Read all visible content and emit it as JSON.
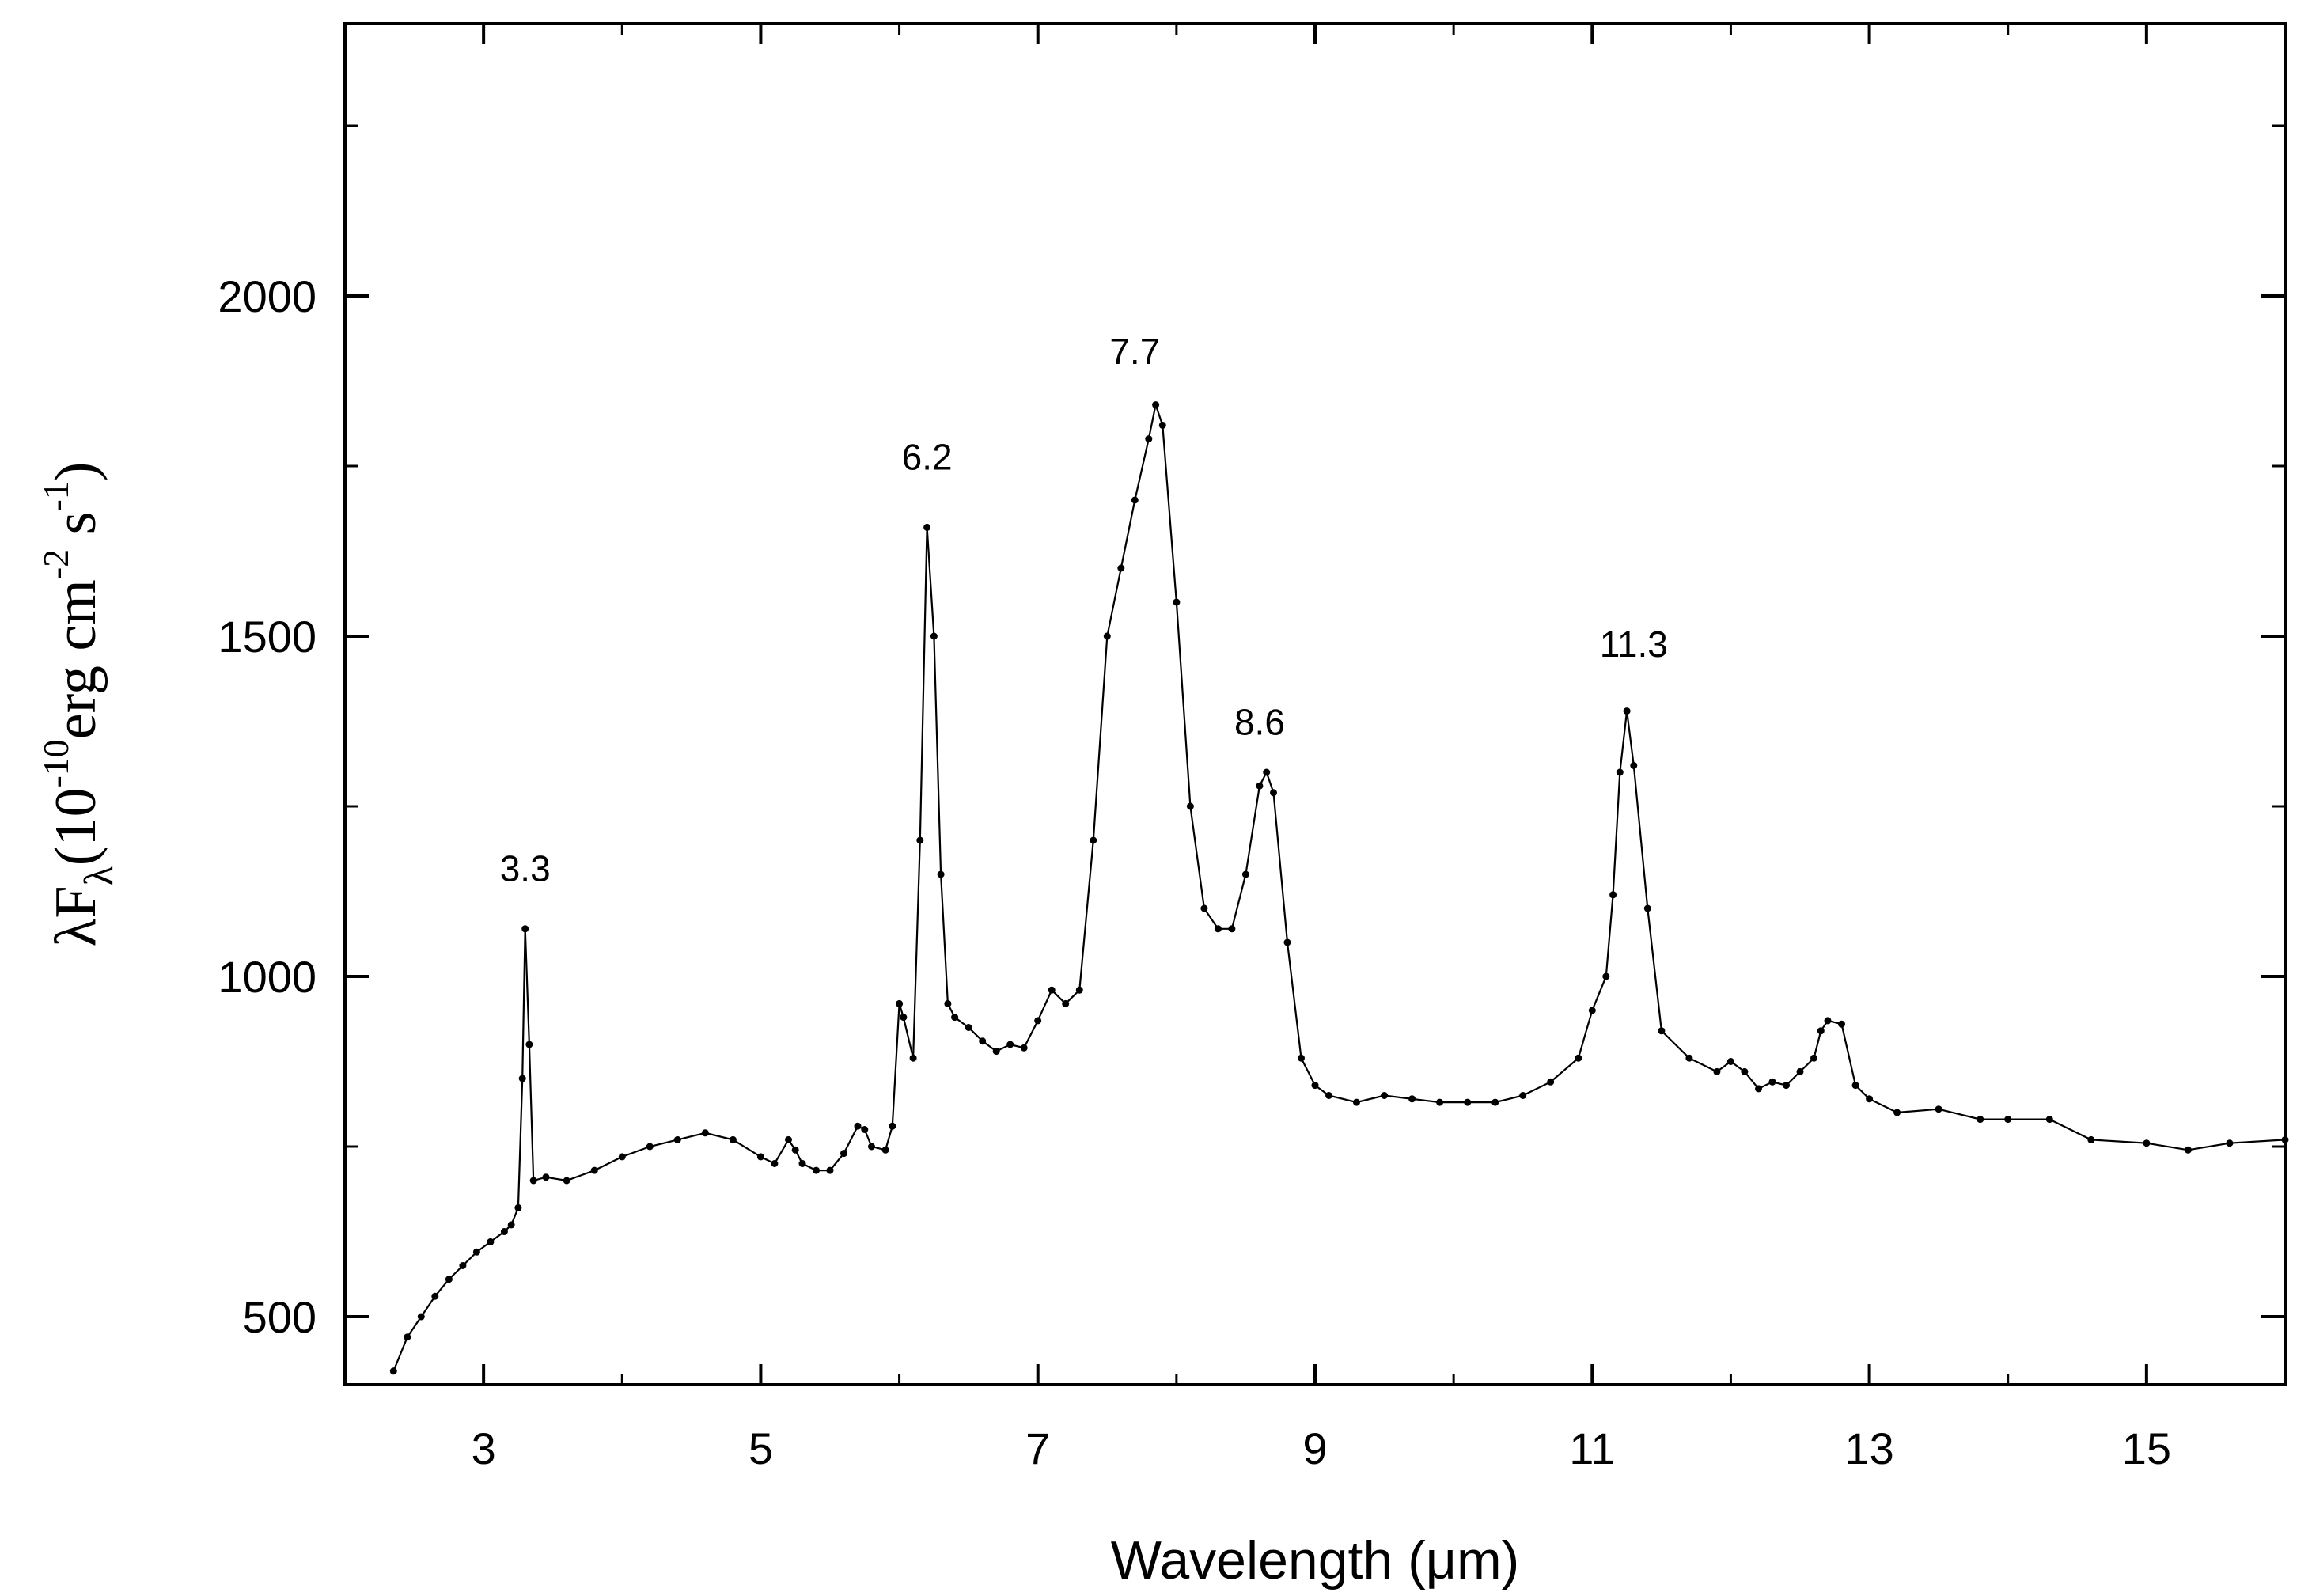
{
  "chart_data": {
    "type": "line",
    "xlabel": "Wavelength (μm)",
    "ylabel": {
      "lambda": "λ",
      "F": "F",
      "sub": "λ",
      "open": "(10",
      "exp1": "-10",
      "erg": "erg cm",
      "exp2": "-2",
      "s": " s",
      "exp3": "-1",
      "close": ")"
    },
    "xlim": [
      2,
      16
    ],
    "ylim": [
      400,
      2400
    ],
    "xticks": [
      3,
      5,
      7,
      9,
      11,
      13,
      15
    ],
    "xtick_labels": [
      "3",
      "5",
      "7",
      "9",
      "11",
      "13",
      "15"
    ],
    "yticks": [
      500,
      1000,
      1500,
      2000
    ],
    "ytick_labels": [
      "500",
      "1000",
      "1500",
      "2000"
    ],
    "grid": false,
    "line_color": "#000000",
    "marker": "dot",
    "annotations": [
      {
        "text": "3.3",
        "x": 3.3,
        "y": 1140
      },
      {
        "text": "6.2",
        "x": 6.2,
        "y": 1745
      },
      {
        "text": "7.7",
        "x": 7.7,
        "y": 1900
      },
      {
        "text": "8.6",
        "x": 8.6,
        "y": 1355
      },
      {
        "text": "11.3",
        "x": 11.3,
        "y": 1470
      }
    ],
    "series": [
      {
        "x": [
          2.35,
          2.45,
          2.55,
          2.65,
          2.75,
          2.85,
          2.95,
          3.05,
          3.15,
          3.2,
          3.25,
          3.28,
          3.3,
          3.33,
          3.36,
          3.45,
          3.6,
          3.8,
          4.0,
          4.2,
          4.4,
          4.6,
          4.8,
          5.0,
          5.1,
          5.2,
          5.25,
          5.3,
          5.4,
          5.5,
          5.6,
          5.7,
          5.75,
          5.8,
          5.9,
          5.95,
          6.0,
          6.03,
          6.1,
          6.15,
          6.2,
          6.25,
          6.3,
          6.35,
          6.4,
          6.5,
          6.6,
          6.7,
          6.8,
          6.9,
          7.0,
          7.1,
          7.2,
          7.3,
          7.4,
          7.5,
          7.6,
          7.7,
          7.8,
          7.85,
          7.9,
          8.0,
          8.1,
          8.2,
          8.3,
          8.4,
          8.5,
          8.6,
          8.65,
          8.7,
          8.8,
          8.9,
          9.0,
          9.1,
          9.3,
          9.5,
          9.7,
          9.9,
          10.1,
          10.3,
          10.5,
          10.7,
          10.9,
          11.0,
          11.1,
          11.15,
          11.2,
          11.25,
          11.3,
          11.4,
          11.5,
          11.7,
          11.9,
          12.0,
          12.1,
          12.2,
          12.3,
          12.4,
          12.5,
          12.6,
          12.65,
          12.7,
          12.8,
          12.9,
          13.0,
          13.2,
          13.5,
          13.8,
          14.0,
          14.3,
          14.6,
          15.0,
          15.3,
          15.6,
          16.0
        ],
        "y": [
          420,
          470,
          500,
          530,
          555,
          575,
          595,
          610,
          625,
          635,
          660,
          850,
          1070,
          900,
          700,
          705,
          700,
          715,
          735,
          750,
          760,
          770,
          760,
          735,
          725,
          760,
          745,
          725,
          715,
          715,
          740,
          780,
          775,
          750,
          745,
          780,
          960,
          940,
          880,
          1200,
          1660,
          1500,
          1150,
          960,
          940,
          925,
          905,
          890,
          900,
          895,
          935,
          980,
          960,
          980,
          1200,
          1500,
          1600,
          1700,
          1790,
          1840,
          1810,
          1550,
          1250,
          1100,
          1070,
          1070,
          1150,
          1280,
          1300,
          1270,
          1050,
          880,
          840,
          825,
          815,
          825,
          820,
          815,
          815,
          815,
          825,
          845,
          880,
          950,
          1000,
          1120,
          1300,
          1390,
          1310,
          1100,
          920,
          880,
          860,
          875,
          860,
          835,
          845,
          840,
          860,
          880,
          920,
          935,
          930,
          840,
          820,
          800,
          805,
          790,
          790,
          790,
          760,
          755,
          745,
          755,
          760
        ]
      }
    ]
  }
}
